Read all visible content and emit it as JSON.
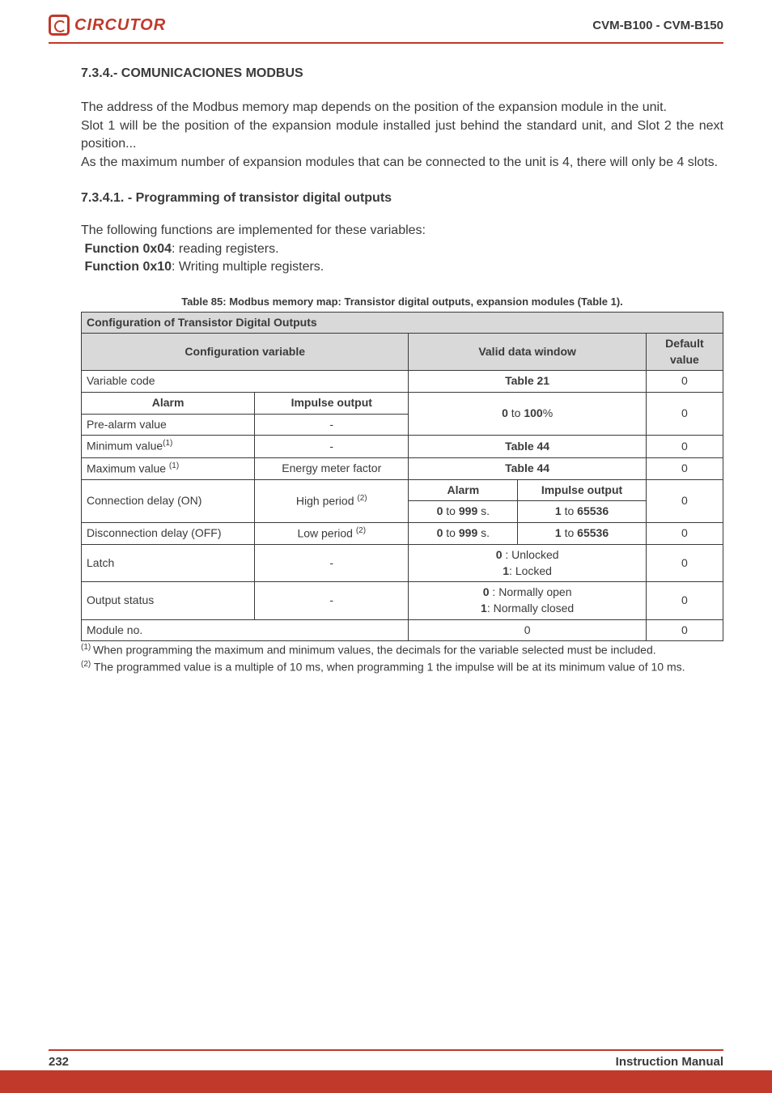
{
  "header": {
    "logo_text": "CIRCUTOR",
    "doc_code": "CVM-B100 - CVM-B150",
    "brand_color": "#c0392b"
  },
  "section": {
    "number_title": "7.3.4.- COMUNICACIONES MODBUS",
    "para1": "The address of the Modbus memory map depends on the position of the expansion module in the unit.",
    "para2": "Slot 1 will be the position of the expansion module installed just behind the standard unit, and Slot 2 the next position...",
    "para3": "As the maximum number of expansion modules that can be connected to the unit is 4, there will only be 4 slots.",
    "subsection_title": "7.3.4.1. - Programming of transistor digital outputs",
    "intro": "The following functions are implemented for these variables:",
    "fn1_label": "Function 0x04",
    "fn1_desc": ": reading registers.",
    "fn2_label": "Function 0x10",
    "fn2_desc": ": Writing multiple registers."
  },
  "table": {
    "caption": "Table 85: Modbus memory map: Transistor digital outputs, expansion modules (Table 1).",
    "title": "Configuration of Transistor Digital Outputs",
    "col_config": "Configuration variable",
    "col_valid": "Valid data window",
    "col_default": "Default value",
    "sub_alarm": "Alarm",
    "sub_impulse": "Impulse output",
    "rows": {
      "r0": {
        "c0": "Variable code",
        "valid": "Table 21",
        "def": "0"
      },
      "r1": {
        "c0a": "Alarm",
        "c0b": "Impulse output"
      },
      "r2": {
        "c0": "Pre-alarm value",
        "c1": "-",
        "valid_html": "<b>0</b> to <b>100</b>%",
        "def": "0"
      },
      "r3": {
        "c0": "Minimum value",
        "sup": "(1)",
        "c1": "-",
        "valid": "Table 44",
        "def": "0"
      },
      "r4": {
        "c0": "Maximum value ",
        "sup": "(1)",
        "c1": "Energy meter factor",
        "valid": "Table 44",
        "def": "0"
      },
      "r5": {
        "c0": "Connection delay (ON)",
        "c1": "High period ",
        "c1sup": "(2)",
        "v_alarm_hdr": "Alarm",
        "v_imp_hdr": "Impulse output",
        "v_alarm": "<b>0</b> to <b>999</b> s.",
        "v_imp": "<b>1</b> to <b>65536</b>",
        "def": "0"
      },
      "r6": {
        "c0": "Disconnection delay (OFF)",
        "c1": "Low period ",
        "c1sup": "(2)",
        "v_alarm": "<b>0</b> to <b>999</b> s.",
        "v_imp": "<b>1</b> to <b>65536</b>",
        "def": "0"
      },
      "r7": {
        "c0": "Latch",
        "c1": "-",
        "valid_html": "<b>0</b> : Unlocked<br><b>1</b>: Locked",
        "def": "0"
      },
      "r8": {
        "c0": "Output status",
        "c1": "-",
        "valid_html": "<b>0</b> : Normally open<br><b>1</b>: Normally closed",
        "def": "0"
      },
      "r9": {
        "c0": "Module no.",
        "valid": "0",
        "def": "0"
      }
    }
  },
  "footnotes": {
    "n1_sup": "(1) ",
    "n1": "When programming the maximum and minimum values, the decimals for the variable selected must be included.",
    "n2_sup": "(2)",
    "n2": " The programmed value is a multiple of 10 ms, when programming 1 the impulse will be at its minimum value of 10 ms."
  },
  "footer": {
    "page": "232",
    "label": "Instruction Manual"
  },
  "style": {
    "body_font_size": 16,
    "table_font_size": 14,
    "caption_font_size": 13,
    "footnote_font_size": 14,
    "text_color": "#3a3a3a",
    "header_bg": "#d9d9d9",
    "border_color": "#3a3a3a"
  }
}
